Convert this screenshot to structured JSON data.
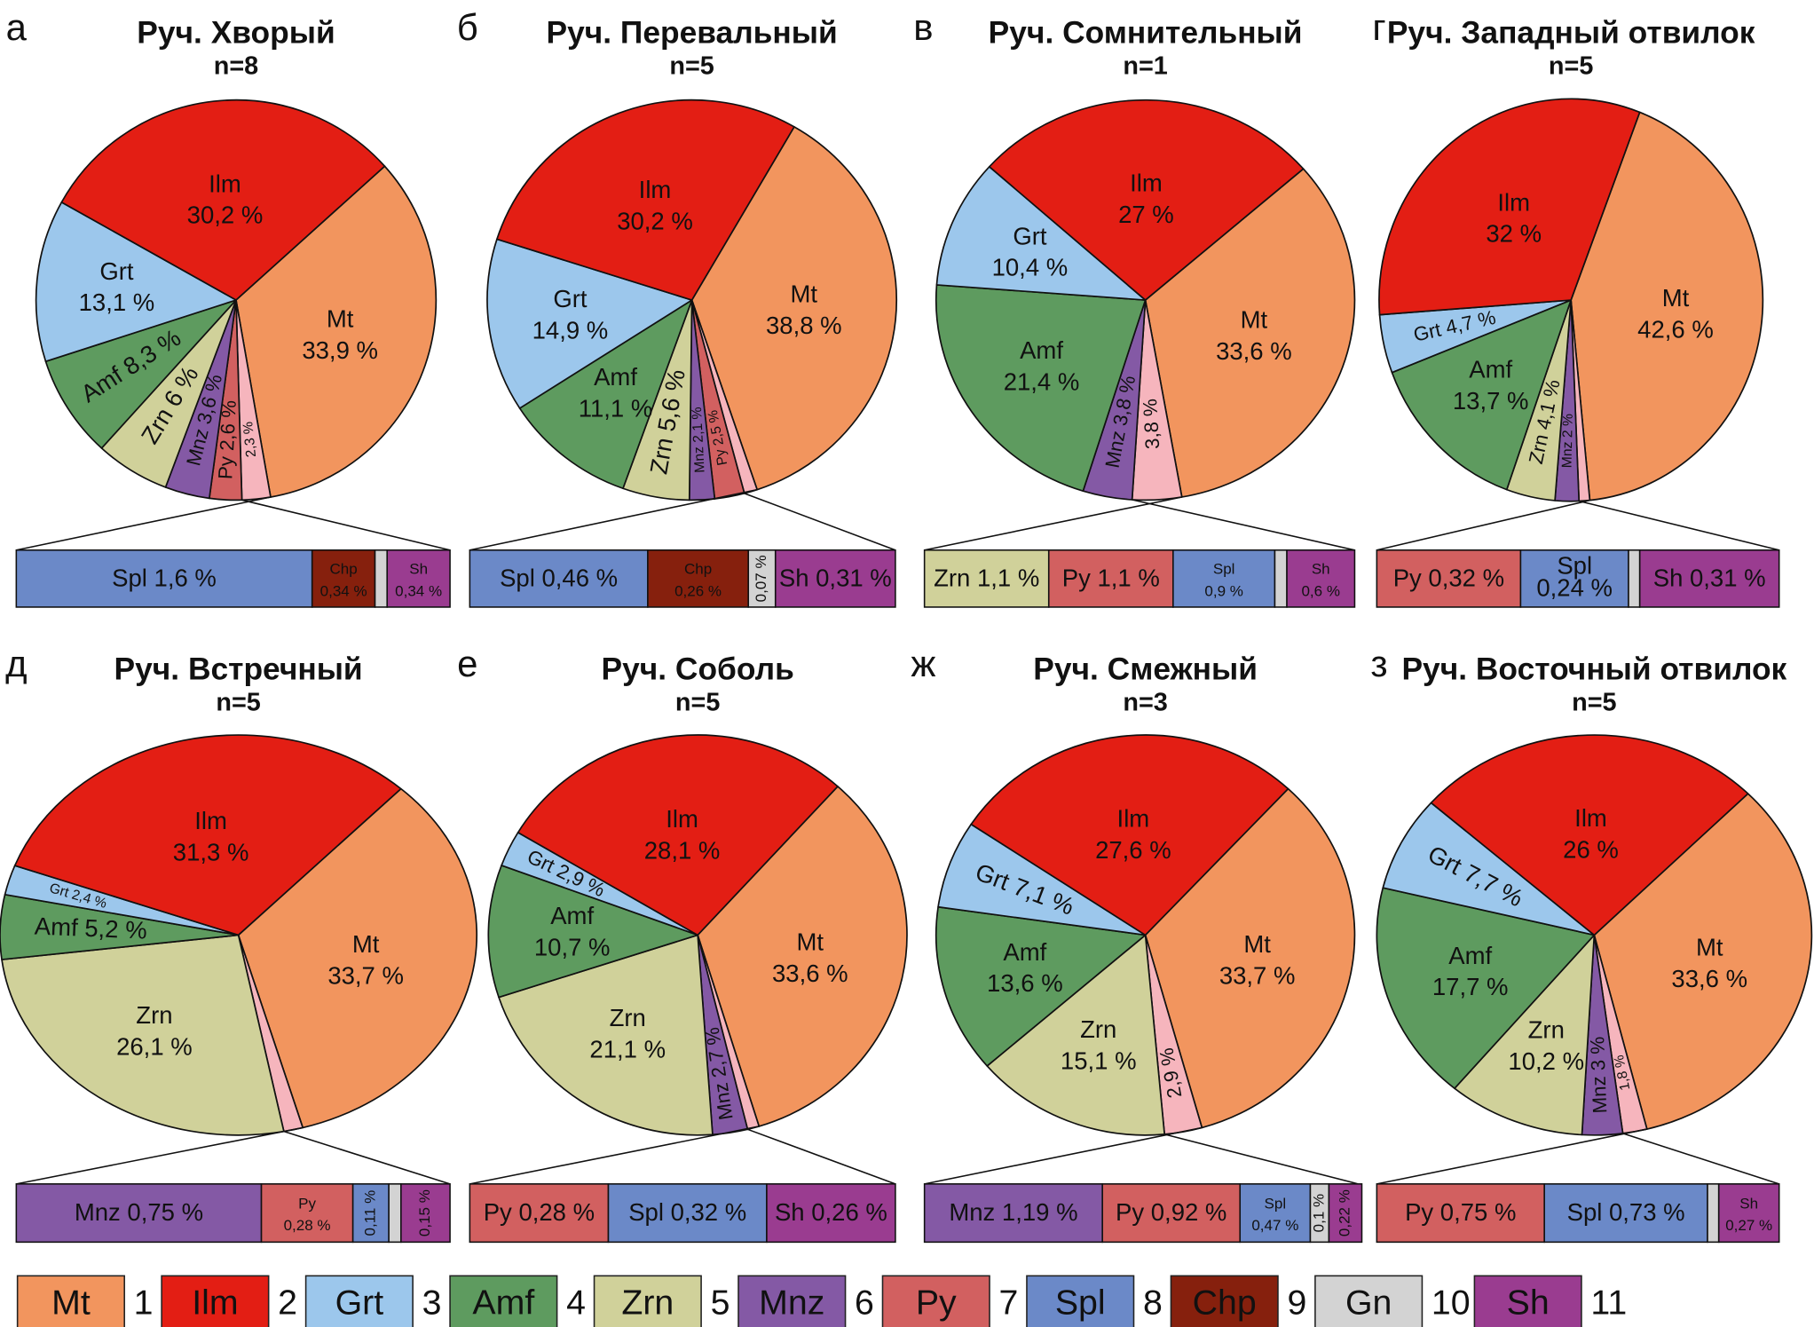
{
  "colors": {
    "Mt": "#f2955e",
    "Ilm": "#e31e14",
    "Grt": "#9cc7ec",
    "Amf": "#5e9b5f",
    "Zrn": "#d0d19a",
    "Mnz": "#8459a5",
    "Py": "#d26060",
    "Spl": "#6b89c8",
    "Chp": "#86200d",
    "Gn": "#d3d3d3",
    "Sh": "#9a3c90",
    "Other": "#f6b5bd"
  },
  "legend": [
    {
      "code": "Mt",
      "num": "1"
    },
    {
      "code": "Ilm",
      "num": "2"
    },
    {
      "code": "Grt",
      "num": "3"
    },
    {
      "code": "Amf",
      "num": "4"
    },
    {
      "code": "Zrn",
      "num": "5"
    },
    {
      "code": "Mnz",
      "num": "6"
    },
    {
      "code": "Py",
      "num": "7"
    },
    {
      "code": "Spl",
      "num": "8"
    },
    {
      "code": "Chp",
      "num": "9"
    },
    {
      "code": "Gn",
      "num": "10"
    },
    {
      "code": "Sh",
      "num": "11"
    }
  ],
  "chart_data": [
    {
      "type": "pie",
      "letter": "а",
      "title": "Руч. Хворый",
      "n": "n=8",
      "slices": [
        {
          "code": "Mt",
          "value": 33.9,
          "label": "Mt",
          "value_label": "33,9 %"
        },
        {
          "code": "Other",
          "value": 2.3,
          "label": "",
          "value_label": "2,3 %"
        },
        {
          "code": "Py",
          "value": 2.6,
          "label": "Py",
          "value_label": "2,6 %"
        },
        {
          "code": "Mnz",
          "value": 3.6,
          "label": "Mnz",
          "value_label": "3,6 %"
        },
        {
          "code": "Zrn",
          "value": 6.0,
          "label": "Zrn",
          "value_label": "6 %"
        },
        {
          "code": "Amf",
          "value": 8.3,
          "label": "Amf",
          "value_label": "8,3 %"
        },
        {
          "code": "Grt",
          "value": 13.1,
          "label": "Grt",
          "value_label": "13,1 %"
        },
        {
          "code": "Ilm",
          "value": 30.2,
          "label": "Ilm",
          "value_label": "30,2 %"
        }
      ],
      "breakdown": [
        {
          "code": "Spl",
          "value": 1.6,
          "label": "Spl 1,6 %"
        },
        {
          "code": "Chp",
          "value": 0.34,
          "label": "Chp 0,34 %"
        },
        {
          "code": "Gn",
          "value": null,
          "label": ""
        },
        {
          "code": "Sh",
          "value": 0.34,
          "label": "Sh 0,34 %"
        }
      ]
    },
    {
      "type": "pie",
      "letter": "б",
      "title": "Руч. Перевальный",
      "n": "n=5",
      "slices": [
        {
          "code": "Mt",
          "value": 38.8,
          "label": "Mt",
          "value_label": "38,8 %"
        },
        {
          "code": "Other",
          "value": 1.1,
          "label": "",
          "value_label": ""
        },
        {
          "code": "Py",
          "value": 2.5,
          "label": "Py",
          "value_label": "2,5 %"
        },
        {
          "code": "Mnz",
          "value": 2.1,
          "label": "Mnz",
          "value_label": "2,1 %"
        },
        {
          "code": "Zrn",
          "value": 5.6,
          "label": "Zrn",
          "value_label": "5,6 %"
        },
        {
          "code": "Amf",
          "value": 11.1,
          "label": "Amf",
          "value_label": "11,1 %"
        },
        {
          "code": "Grt",
          "value": 14.9,
          "label": "Grt",
          "value_label": "14,9 %"
        },
        {
          "code": "Ilm",
          "value": 30.2,
          "label": "Ilm",
          "value_label": "30,2 %"
        }
      ],
      "breakdown": [
        {
          "code": "Spl",
          "value": 0.46,
          "label": "Spl 0,46 %"
        },
        {
          "code": "Chp",
          "value": 0.26,
          "label": "Chp 0,26 %"
        },
        {
          "code": "Gn",
          "value": 0.07,
          "label": "0,07 %"
        },
        {
          "code": "Sh",
          "value": 0.31,
          "label": "Sh 0,31 %"
        }
      ]
    },
    {
      "type": "pie",
      "letter": "в",
      "title": "Руч. Сомнительный",
      "n": "n=1",
      "slices": [
        {
          "code": "Mt",
          "value": 33.6,
          "label": "Mt",
          "value_label": "33,6 %"
        },
        {
          "code": "Other",
          "value": 3.8,
          "label": "",
          "value_label": "3,8 %"
        },
        {
          "code": "Mnz",
          "value": 3.8,
          "label": "Mnz",
          "value_label": "3,8 %"
        },
        {
          "code": "Amf",
          "value": 21.4,
          "label": "Amf",
          "value_label": "21,4 %"
        },
        {
          "code": "Grt",
          "value": 10.4,
          "label": "Grt",
          "value_label": "10,4 %"
        },
        {
          "code": "Ilm",
          "value": 27.0,
          "label": "Ilm",
          "value_label": "27 %"
        }
      ],
      "breakdown": [
        {
          "code": "Zrn",
          "value": 1.1,
          "label": "Zrn 1,1 %"
        },
        {
          "code": "Py",
          "value": 1.1,
          "label": "Py 1,1 %"
        },
        {
          "code": "Spl",
          "value": 0.9,
          "label": "Spl 0,9 %"
        },
        {
          "code": "Gn",
          "value": null,
          "label": ""
        },
        {
          "code": "Sh",
          "value": 0.6,
          "label": "Sh 0,6 %"
        }
      ]
    },
    {
      "type": "pie",
      "letter": "г",
      "title": "Руч. Западный отвилок",
      "n": "n=5",
      "slices": [
        {
          "code": "Mt",
          "value": 42.6,
          "label": "Mt",
          "value_label": "42,6 %"
        },
        {
          "code": "Other",
          "value": 0.9,
          "label": "",
          "value_label": ""
        },
        {
          "code": "Mnz",
          "value": 2.0,
          "label": "Mnz",
          "value_label": "2 %"
        },
        {
          "code": "Zrn",
          "value": 4.1,
          "label": "Zrn",
          "value_label": "4,1 %"
        },
        {
          "code": "Amf",
          "value": 13.7,
          "label": "Amf",
          "value_label": "13,7 %"
        },
        {
          "code": "Grt",
          "value": 4.7,
          "label": "Grt",
          "value_label": "4,7 %"
        },
        {
          "code": "Ilm",
          "value": 32.0,
          "label": "Ilm",
          "value_label": "32 %"
        }
      ],
      "breakdown": [
        {
          "code": "Py",
          "value": 0.32,
          "label": "Py 0,32 %"
        },
        {
          "code": "Spl",
          "value": 0.24,
          "label": "Spl 0,24 %"
        },
        {
          "code": "Gn",
          "value": null,
          "label": ""
        },
        {
          "code": "Sh",
          "value": 0.31,
          "label": "Sh 0,31 %"
        }
      ]
    },
    {
      "type": "pie",
      "letter": "д",
      "title": "Руч. Встречный",
      "n": "n=5",
      "slices": [
        {
          "code": "Mt",
          "value": 33.7,
          "label": "Mt",
          "value_label": "33,7 %"
        },
        {
          "code": "Other",
          "value": 1.3,
          "label": "",
          "value_label": ""
        },
        {
          "code": "Zrn",
          "value": 26.1,
          "label": "Zrn",
          "value_label": "26,1 %"
        },
        {
          "code": "Amf",
          "value": 5.2,
          "label": "Amf",
          "value_label": "5,2 %"
        },
        {
          "code": "Grt",
          "value": 2.4,
          "label": "Grt",
          "value_label": "2,4 %"
        },
        {
          "code": "Ilm",
          "value": 31.3,
          "label": "Ilm",
          "value_label": "31,3 %"
        }
      ],
      "breakdown": [
        {
          "code": "Mnz",
          "value": 0.75,
          "label": "Mnz 0,75 %"
        },
        {
          "code": "Py",
          "value": 0.28,
          "label": "Py 0,28 %"
        },
        {
          "code": "Spl",
          "value": 0.11,
          "label": "0,11 %"
        },
        {
          "code": "Gn",
          "value": null,
          "label": ""
        },
        {
          "code": "Sh",
          "value": 0.15,
          "label": "0,15 %"
        }
      ]
    },
    {
      "type": "pie",
      "letter": "е",
      "title": "Руч. Соболь",
      "n": "n=5",
      "slices": [
        {
          "code": "Mt",
          "value": 33.6,
          "label": "Mt",
          "value_label": "33,6 %"
        },
        {
          "code": "Other",
          "value": 0.9,
          "label": "",
          "value_label": ""
        },
        {
          "code": "Mnz",
          "value": 2.7,
          "label": "Mnz",
          "value_label": "2,7 %"
        },
        {
          "code": "Zrn",
          "value": 21.1,
          "label": "Zrn",
          "value_label": "21,1 %"
        },
        {
          "code": "Amf",
          "value": 10.7,
          "label": "Amf",
          "value_label": "10,7 %"
        },
        {
          "code": "Grt",
          "value": 2.9,
          "label": "Grt",
          "value_label": "2,9 %"
        },
        {
          "code": "Ilm",
          "value": 28.1,
          "label": "Ilm",
          "value_label": "28,1 %"
        }
      ],
      "breakdown": [
        {
          "code": "Py",
          "value": 0.28,
          "label": "Py 0,28 %"
        },
        {
          "code": "Spl",
          "value": 0.32,
          "label": "Spl 0,32 %"
        },
        {
          "code": "Sh",
          "value": 0.26,
          "label": "Sh 0,26 %"
        }
      ]
    },
    {
      "type": "pie",
      "letter": "ж",
      "title": "Руч. Смежный",
      "n": "n=3",
      "slices": [
        {
          "code": "Mt",
          "value": 33.7,
          "label": "Mt",
          "value_label": "33,7 %"
        },
        {
          "code": "Other",
          "value": 2.9,
          "label": "",
          "value_label": "2,9 %"
        },
        {
          "code": "Zrn",
          "value": 15.1,
          "label": "Zrn",
          "value_label": "15,1 %"
        },
        {
          "code": "Amf",
          "value": 13.6,
          "label": "Amf",
          "value_label": "13,6 %"
        },
        {
          "code": "Grt",
          "value": 7.1,
          "label": "Grt",
          "value_label": "7,1 %"
        },
        {
          "code": "Ilm",
          "value": 27.6,
          "label": "Ilm",
          "value_label": "27,6 %"
        }
      ],
      "breakdown": [
        {
          "code": "Mnz",
          "value": 1.19,
          "label": "Mnz 1,19 %"
        },
        {
          "code": "Py",
          "value": 0.92,
          "label": "Py 0,92 %"
        },
        {
          "code": "Spl",
          "value": 0.47,
          "label": "Spl 0,47 %"
        },
        {
          "code": "Gn",
          "value": 0.1,
          "label": "0,1 %"
        },
        {
          "code": "Sh",
          "value": 0.22,
          "label": "0,22 %"
        }
      ]
    },
    {
      "type": "pie",
      "letter": "з",
      "title": "Руч. Восточный отвилок",
      "n": "n=5",
      "slices": [
        {
          "code": "Mt",
          "value": 33.6,
          "label": "Mt",
          "value_label": "33,6 %"
        },
        {
          "code": "Other",
          "value": 1.8,
          "label": "",
          "value_label": "1,8 %"
        },
        {
          "code": "Mnz",
          "value": 3.0,
          "label": "Mnz",
          "value_label": "3 %"
        },
        {
          "code": "Zrn",
          "value": 10.2,
          "label": "Zrn",
          "value_label": "10,2 %"
        },
        {
          "code": "Amf",
          "value": 17.7,
          "label": "Amf",
          "value_label": "17,7 %"
        },
        {
          "code": "Grt",
          "value": 7.7,
          "label": "Grt",
          "value_label": "7,7 %"
        },
        {
          "code": "Ilm",
          "value": 26.0,
          "label": "Ilm",
          "value_label": "26 %"
        }
      ],
      "breakdown": [
        {
          "code": "Py",
          "value": 0.75,
          "label": "Py 0,75 %"
        },
        {
          "code": "Spl",
          "value": 0.73,
          "label": "Spl 0,73 %"
        },
        {
          "code": "Gn",
          "value": null,
          "label": ""
        },
        {
          "code": "Sh",
          "value": 0.27,
          "label": "Sh 0,27 %"
        }
      ]
    }
  ]
}
